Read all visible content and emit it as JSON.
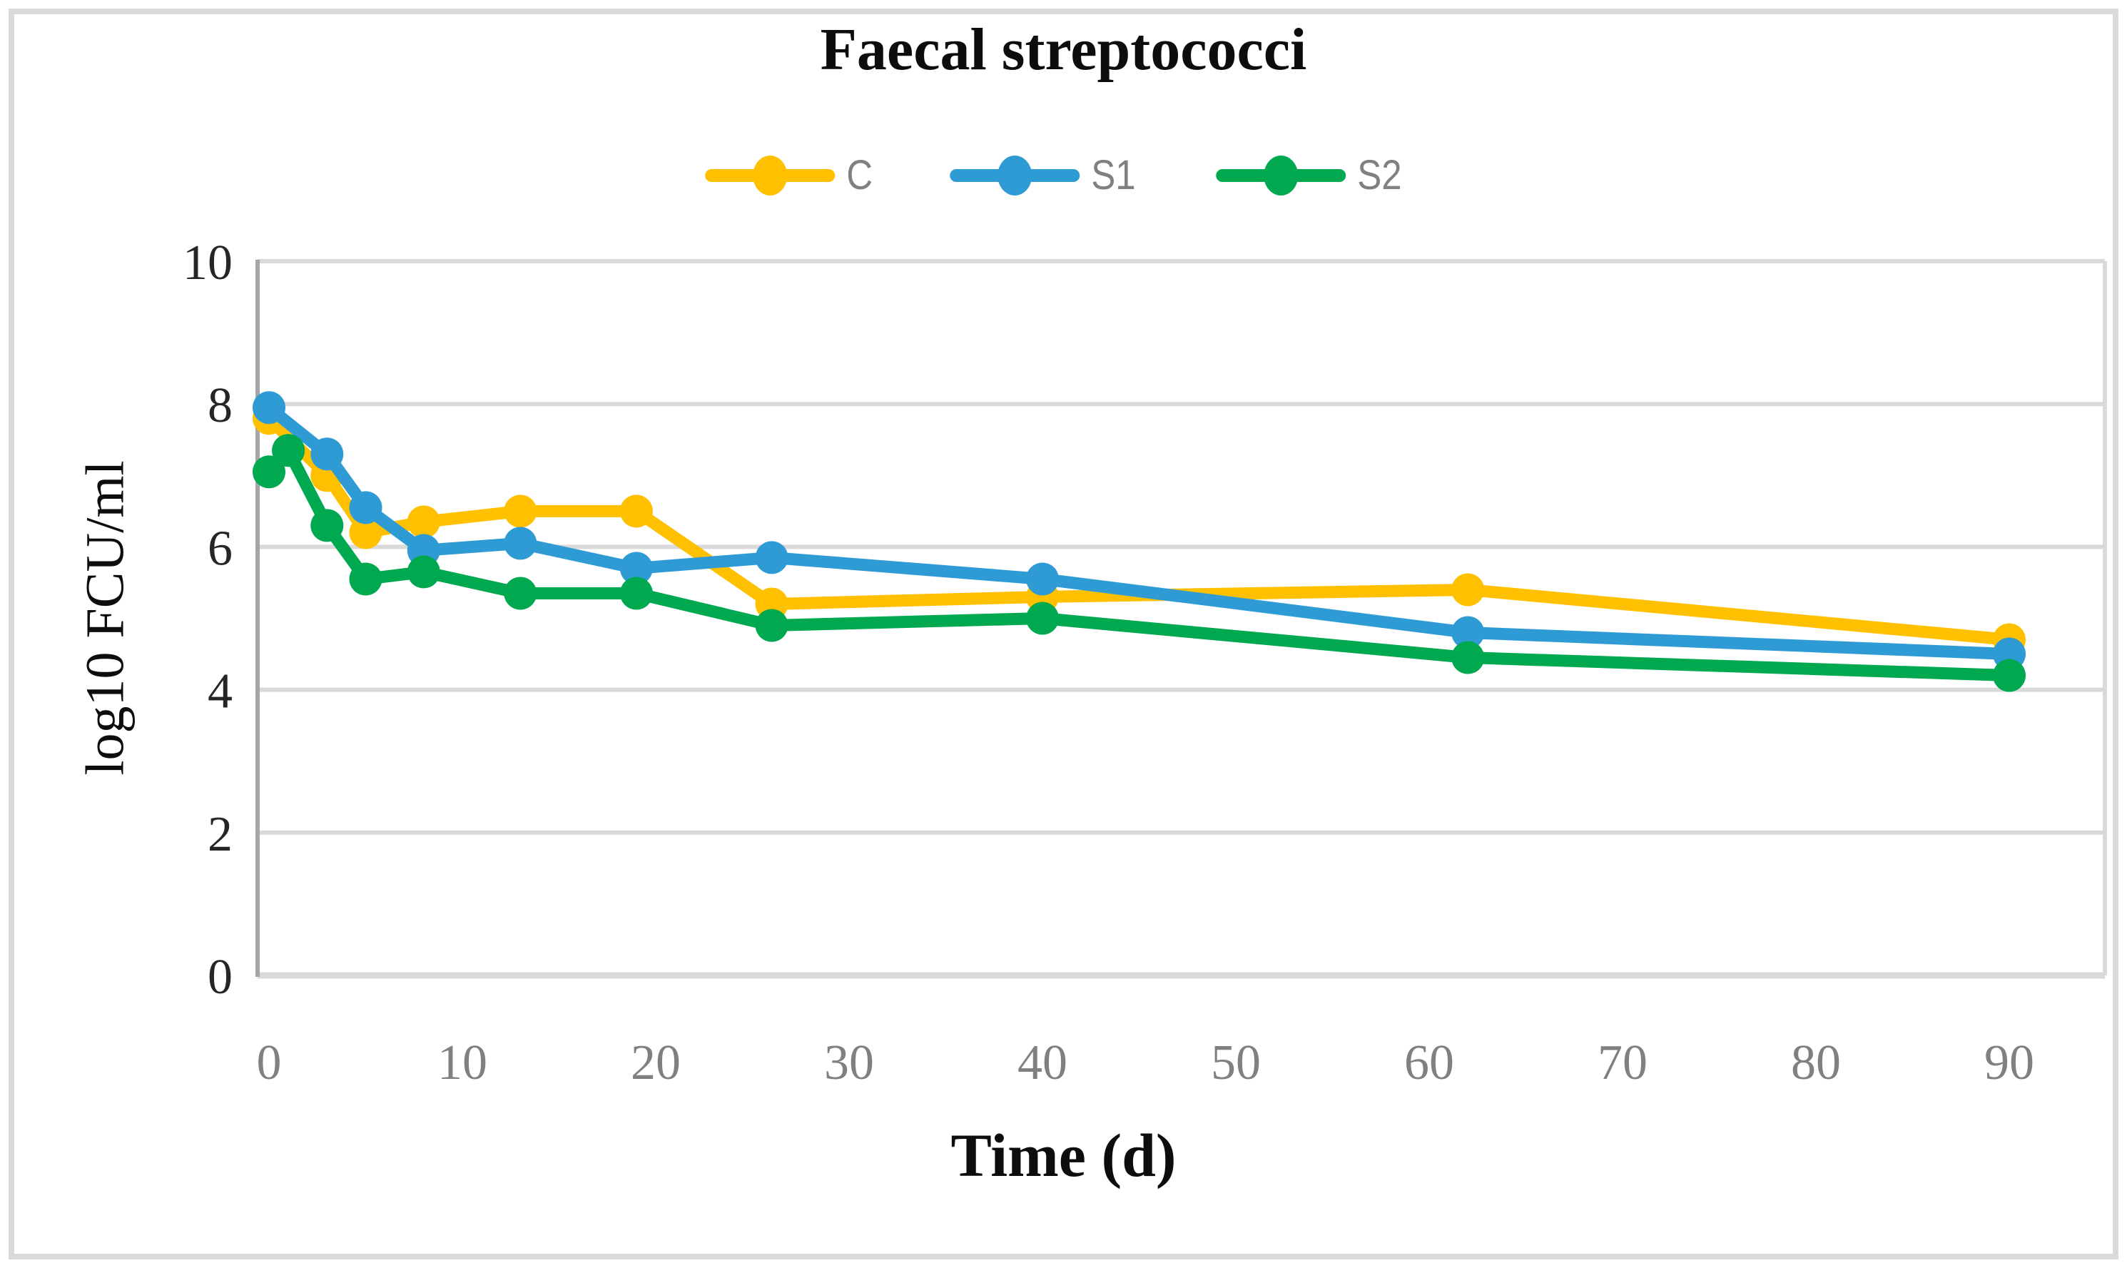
{
  "chart_data": {
    "type": "line",
    "title": "Faecal streptococci",
    "xlabel": "Time (d)",
    "ylabel": "log10 FCU/ml",
    "xlim": [
      0,
      95
    ],
    "ylim": [
      0,
      10
    ],
    "x_ticks": [
      0,
      10,
      20,
      30,
      40,
      50,
      60,
      70,
      80,
      90
    ],
    "y_ticks": [
      0,
      2,
      4,
      6,
      8,
      10
    ],
    "grid": "horizontal",
    "legend_position": "top-center",
    "series": [
      {
        "name": "C",
        "color": "#FFC000",
        "x": [
          0,
          3,
          5,
          8,
          13,
          19,
          26,
          40,
          62,
          90
        ],
        "y": [
          7.8,
          7.0,
          6.2,
          6.35,
          6.5,
          6.5,
          5.2,
          5.3,
          5.4,
          4.7
        ]
      },
      {
        "name": "S1",
        "color": "#2E9BD5",
        "x": [
          0,
          3,
          5,
          8,
          13,
          19,
          26,
          40,
          62,
          90
        ],
        "y": [
          7.95,
          7.3,
          6.55,
          5.95,
          6.05,
          5.7,
          5.85,
          5.55,
          4.8,
          4.5
        ]
      },
      {
        "name": "S2",
        "color": "#00A850",
        "x": [
          0,
          1,
          3,
          5,
          8,
          13,
          19,
          26,
          40,
          62,
          90
        ],
        "y": [
          7.05,
          7.35,
          6.3,
          5.55,
          5.65,
          5.35,
          5.35,
          4.9,
          5.0,
          4.45,
          4.2
        ]
      }
    ],
    "style_colors": {
      "gridline": "#D9D9D9",
      "y_axis_line": "#A6A6A6",
      "x_tick_label": "#808080",
      "y_tick_label": "#262626"
    }
  }
}
